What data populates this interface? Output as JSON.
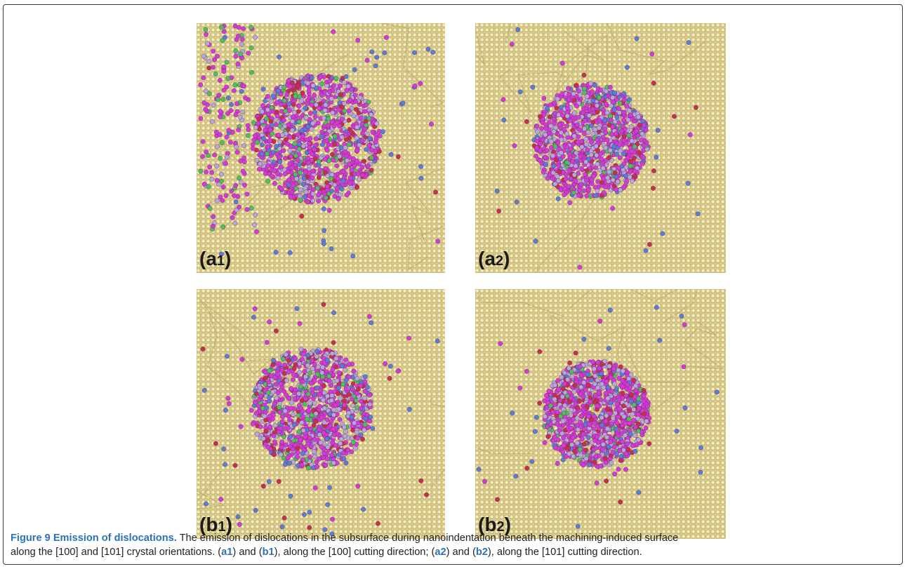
{
  "figure": {
    "panels": [
      {
        "id": "a1",
        "letter": "(a",
        "number": "1",
        "close": ")"
      },
      {
        "id": "a2",
        "letter": "(a",
        "number": "2",
        "close": ")"
      },
      {
        "id": "b1",
        "letter": "(b",
        "number": "1",
        "close": ")"
      },
      {
        "id": "b2",
        "letter": "(b",
        "number": "2",
        "close": ")"
      }
    ],
    "atom_colors": {
      "matrix": "#dccf8e",
      "magenta": "#d63ad6",
      "lavender": "#b6a8d8",
      "red": "#c8304a",
      "green": "#4cc25a",
      "blue": "#5a7ed6"
    }
  },
  "caption": {
    "title": "Figure 9 Emission of dislocations.",
    "line1": " The emission of dislocations in the subsurface during nanoindentation beneath the machining-induced surface",
    "line2_start": "along the [100] and [101] crystal orientations. (",
    "t_a1": "a1",
    "t_and1": ") and (",
    "t_b1": "b1",
    "t_dir1": "), along the [100] cutting direction; (",
    "t_a2": "a2",
    "t_and2": ") and (",
    "t_b2": "b2",
    "t_dir2": "), along the [101] cutting direction."
  }
}
